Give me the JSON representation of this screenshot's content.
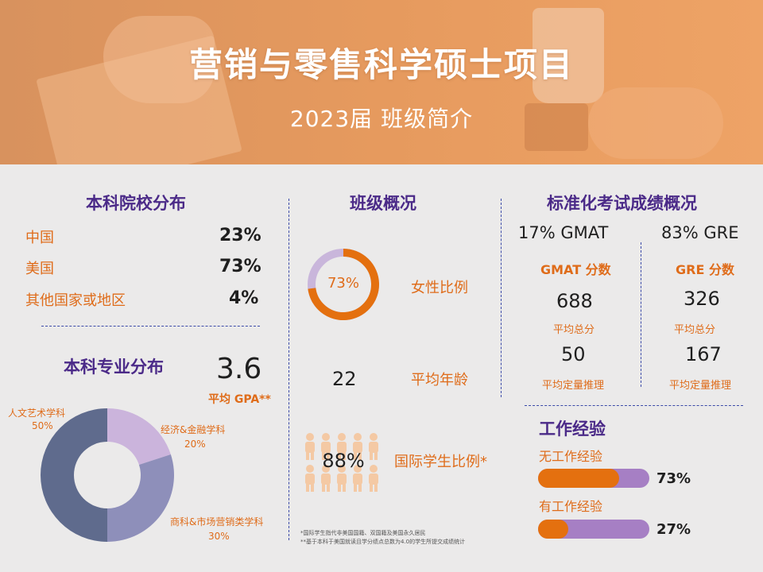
{
  "header": {
    "title": "营销与零售科学硕士项目",
    "subtitle": "2023届 班级简介"
  },
  "undergrad_schools": {
    "title": "本科院校分布",
    "rows": [
      {
        "label": "中国",
        "value": "23%"
      },
      {
        "label": "美国",
        "value": "73%"
      },
      {
        "label": "其他国家或地区",
        "value": "4%"
      }
    ]
  },
  "majors": {
    "title": "本科专业分布",
    "gpa_value": "3.6",
    "gpa_label": "平均 GPA**",
    "segments": [
      {
        "name": "人文艺术学科",
        "pct_label": "50%",
        "value": 50,
        "color": "#5f6b8d"
      },
      {
        "name": "经济&金融学科",
        "pct_label": "20%",
        "value": 20,
        "color": "#cbb4dc"
      },
      {
        "name": "商科&市场营销类学科",
        "pct_label": "30%",
        "value": 30,
        "color": "#8e8fba"
      }
    ]
  },
  "class_overview": {
    "title": "班级概况",
    "female_ratio": {
      "value_label": "73%",
      "value": 0.73,
      "label": "女性比例"
    },
    "average_age": {
      "value": "22",
      "label": "平均年龄"
    },
    "international": {
      "value_label": "88%",
      "label": "国际学生比例*"
    }
  },
  "tests": {
    "title": "标准化考试成绩概况",
    "gmat": {
      "share": "17% GMAT",
      "score_title": "GMAT 分数",
      "total": "688",
      "total_label": "平均总分",
      "quant": "50",
      "quant_label": "平均定量推理"
    },
    "gre": {
      "share": "83% GRE",
      "score_title": "GRE 分数",
      "total": "326",
      "total_label": "平均总分",
      "quant": "167",
      "quant_label": "平均定量推理"
    }
  },
  "work": {
    "title": "工作经验",
    "items": [
      {
        "label": "无工作经验",
        "value_label": "73%",
        "value": 0.73
      },
      {
        "label": "有工作经验",
        "value_label": "27%",
        "value": 0.27
      }
    ]
  },
  "footnotes": {
    "line1": "*国际学生指代非美国国籍、双国籍及美国永久居民",
    "line2": "**基于本科于美国就读且学分绩点总数为4.0的学生所提交成绩统计"
  },
  "colors": {
    "orange": "#e4700f",
    "purple_text": "#4b2a88",
    "lavender": "#c9b6db",
    "people_icons": "#f4c9a4"
  }
}
